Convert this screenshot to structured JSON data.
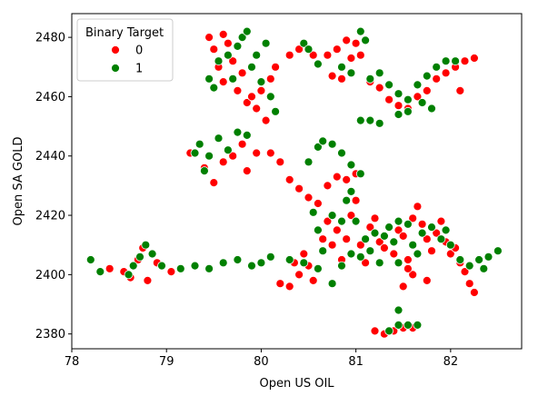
{
  "chart_data": {
    "type": "scatter",
    "title": "",
    "xlabel": "Open US OIL",
    "ylabel": "Open SA GOLD",
    "xlim": [
      78.0,
      82.75
    ],
    "ylim": [
      2375,
      2488
    ],
    "x_ticks": [
      78,
      79,
      80,
      81,
      82
    ],
    "y_ticks": [
      2380,
      2400,
      2420,
      2440,
      2460,
      2480
    ],
    "grid": false,
    "legend": {
      "title": "Binary Target",
      "placement": "upper-left",
      "entries": [
        {
          "label": "0",
          "color": "#ff0000"
        },
        {
          "label": "1",
          "color": "#008000"
        }
      ]
    },
    "series": [
      {
        "name": "0",
        "color": "#ff0000",
        "points": [
          [
            78.4,
            2402
          ],
          [
            78.55,
            2401
          ],
          [
            78.62,
            2399
          ],
          [
            78.7,
            2405
          ],
          [
            78.75,
            2409
          ],
          [
            78.8,
            2398
          ],
          [
            78.9,
            2404
          ],
          [
            79.05,
            2401
          ],
          [
            79.25,
            2441
          ],
          [
            79.4,
            2436
          ],
          [
            79.5,
            2431
          ],
          [
            79.6,
            2438
          ],
          [
            79.7,
            2440
          ],
          [
            79.8,
            2444
          ],
          [
            79.85,
            2435
          ],
          [
            79.95,
            2441
          ],
          [
            80.1,
            2441
          ],
          [
            80.2,
            2438
          ],
          [
            80.3,
            2432
          ],
          [
            80.4,
            2429
          ],
          [
            80.5,
            2426
          ],
          [
            79.5,
            2476
          ],
          [
            79.55,
            2470
          ],
          [
            79.6,
            2465
          ],
          [
            79.65,
            2478
          ],
          [
            79.7,
            2472
          ],
          [
            79.75,
            2462
          ],
          [
            79.8,
            2468
          ],
          [
            79.85,
            2458
          ],
          [
            79.9,
            2460
          ],
          [
            79.95,
            2456
          ],
          [
            80.0,
            2462
          ],
          [
            80.05,
            2452
          ],
          [
            80.1,
            2466
          ],
          [
            80.15,
            2470
          ],
          [
            79.45,
            2480
          ],
          [
            79.6,
            2481
          ],
          [
            80.3,
            2474
          ],
          [
            80.4,
            2476
          ],
          [
            80.55,
            2474
          ],
          [
            80.7,
            2474
          ],
          [
            80.8,
            2476
          ],
          [
            80.9,
            2479
          ],
          [
            80.95,
            2473
          ],
          [
            81.0,
            2478
          ],
          [
            81.05,
            2474
          ],
          [
            80.75,
            2467
          ],
          [
            80.85,
            2466
          ],
          [
            81.15,
            2465
          ],
          [
            81.25,
            2463
          ],
          [
            81.35,
            2459
          ],
          [
            81.45,
            2457
          ],
          [
            81.55,
            2456
          ],
          [
            81.65,
            2460
          ],
          [
            81.75,
            2462
          ],
          [
            81.85,
            2466
          ],
          [
            81.95,
            2468
          ],
          [
            82.05,
            2470
          ],
          [
            82.15,
            2472
          ],
          [
            82.25,
            2473
          ],
          [
            82.1,
            2462
          ],
          [
            80.6,
            2424
          ],
          [
            80.7,
            2418
          ],
          [
            80.75,
            2410
          ],
          [
            80.8,
            2415
          ],
          [
            80.85,
            2405
          ],
          [
            80.9,
            2412
          ],
          [
            80.95,
            2420
          ],
          [
            81.0,
            2425
          ],
          [
            81.05,
            2410
          ],
          [
            81.1,
            2404
          ],
          [
            81.15,
            2416
          ],
          [
            81.2,
            2419
          ],
          [
            81.25,
            2411
          ],
          [
            81.3,
            2409
          ],
          [
            81.4,
            2407
          ],
          [
            81.45,
            2415
          ],
          [
            81.5,
            2413
          ],
          [
            81.55,
            2405
          ],
          [
            81.6,
            2419
          ],
          [
            81.65,
            2423
          ],
          [
            81.7,
            2417
          ],
          [
            81.75,
            2412
          ],
          [
            81.8,
            2408
          ],
          [
            81.85,
            2414
          ],
          [
            81.9,
            2418
          ],
          [
            81.95,
            2411
          ],
          [
            82.0,
            2407
          ],
          [
            82.05,
            2409
          ],
          [
            82.1,
            2404
          ],
          [
            82.15,
            2401
          ],
          [
            82.2,
            2397
          ],
          [
            82.25,
            2394
          ],
          [
            81.6,
            2400
          ],
          [
            81.75,
            2398
          ],
          [
            81.5,
            2396
          ],
          [
            81.55,
            2402
          ],
          [
            80.2,
            2397
          ],
          [
            80.3,
            2396
          ],
          [
            80.4,
            2400
          ],
          [
            80.5,
            2403
          ],
          [
            80.55,
            2398
          ],
          [
            80.35,
            2404
          ],
          [
            80.45,
            2407
          ],
          [
            80.7,
            2430
          ],
          [
            80.8,
            2433
          ],
          [
            80.9,
            2432
          ],
          [
            81.0,
            2434
          ],
          [
            80.65,
            2412
          ],
          [
            81.2,
            2381
          ],
          [
            81.3,
            2380
          ],
          [
            81.4,
            2381
          ],
          [
            81.5,
            2382
          ],
          [
            81.6,
            2382
          ]
        ]
      },
      {
        "name": "1",
        "color": "#008000",
        "points": [
          [
            78.2,
            2405
          ],
          [
            78.3,
            2401
          ],
          [
            78.6,
            2400
          ],
          [
            78.65,
            2403
          ],
          [
            78.72,
            2406
          ],
          [
            78.78,
            2410
          ],
          [
            78.85,
            2407
          ],
          [
            78.95,
            2403
          ],
          [
            79.15,
            2402
          ],
          [
            79.3,
            2403
          ],
          [
            79.45,
            2402
          ],
          [
            79.6,
            2404
          ],
          [
            79.75,
            2405
          ],
          [
            79.9,
            2403
          ],
          [
            80.0,
            2404
          ],
          [
            80.1,
            2406
          ],
          [
            79.35,
            2444
          ],
          [
            79.45,
            2440
          ],
          [
            79.55,
            2446
          ],
          [
            79.65,
            2442
          ],
          [
            79.75,
            2448
          ],
          [
            79.85,
            2447
          ],
          [
            79.3,
            2441
          ],
          [
            79.4,
            2435
          ],
          [
            79.45,
            2466
          ],
          [
            79.55,
            2472
          ],
          [
            79.65,
            2474
          ],
          [
            79.75,
            2477
          ],
          [
            79.8,
            2480
          ],
          [
            79.85,
            2482
          ],
          [
            79.95,
            2474
          ],
          [
            80.05,
            2478
          ],
          [
            79.9,
            2470
          ],
          [
            80.0,
            2465
          ],
          [
            80.1,
            2460
          ],
          [
            80.15,
            2455
          ],
          [
            79.5,
            2463
          ],
          [
            79.7,
            2466
          ],
          [
            80.45,
            2478
          ],
          [
            80.5,
            2476
          ],
          [
            80.6,
            2471
          ],
          [
            80.85,
            2470
          ],
          [
            80.95,
            2468
          ],
          [
            81.05,
            2482
          ],
          [
            81.1,
            2479
          ],
          [
            81.15,
            2466
          ],
          [
            81.25,
            2468
          ],
          [
            81.35,
            2464
          ],
          [
            81.45,
            2461
          ],
          [
            81.55,
            2459
          ],
          [
            81.65,
            2464
          ],
          [
            81.75,
            2467
          ],
          [
            81.85,
            2470
          ],
          [
            81.95,
            2472
          ],
          [
            82.05,
            2472
          ],
          [
            81.05,
            2452
          ],
          [
            81.15,
            2452
          ],
          [
            81.25,
            2451
          ],
          [
            81.45,
            2454
          ],
          [
            81.55,
            2455
          ],
          [
            81.7,
            2458
          ],
          [
            81.8,
            2456
          ],
          [
            80.5,
            2438
          ],
          [
            80.6,
            2443
          ],
          [
            80.65,
            2445
          ],
          [
            80.75,
            2444
          ],
          [
            80.85,
            2441
          ],
          [
            80.95,
            2437
          ],
          [
            81.05,
            2434
          ],
          [
            80.55,
            2421
          ],
          [
            80.6,
            2415
          ],
          [
            80.65,
            2408
          ],
          [
            80.75,
            2420
          ],
          [
            80.85,
            2418
          ],
          [
            80.9,
            2425
          ],
          [
            80.95,
            2428
          ],
          [
            81.0,
            2418
          ],
          [
            81.05,
            2406
          ],
          [
            81.1,
            2412
          ],
          [
            81.15,
            2408
          ],
          [
            81.2,
            2414
          ],
          [
            81.3,
            2413
          ],
          [
            81.35,
            2416
          ],
          [
            81.4,
            2411
          ],
          [
            81.45,
            2418
          ],
          [
            81.55,
            2417
          ],
          [
            81.6,
            2410
          ],
          [
            81.7,
            2414
          ],
          [
            81.8,
            2416
          ],
          [
            81.9,
            2412
          ],
          [
            81.95,
            2415
          ],
          [
            82.0,
            2410
          ],
          [
            82.1,
            2405
          ],
          [
            82.2,
            2403
          ],
          [
            82.3,
            2405
          ],
          [
            82.4,
            2406
          ],
          [
            82.5,
            2408
          ],
          [
            82.35,
            2402
          ],
          [
            80.3,
            2405
          ],
          [
            80.45,
            2404
          ],
          [
            80.6,
            2402
          ],
          [
            80.75,
            2397
          ],
          [
            80.85,
            2403
          ],
          [
            80.95,
            2407
          ],
          [
            81.35,
            2381
          ],
          [
            81.45,
            2383
          ],
          [
            81.55,
            2383
          ],
          [
            81.65,
            2383
          ],
          [
            81.45,
            2388
          ],
          [
            81.45,
            2404
          ],
          [
            81.65,
            2407
          ],
          [
            81.25,
            2404
          ]
        ]
      }
    ]
  }
}
